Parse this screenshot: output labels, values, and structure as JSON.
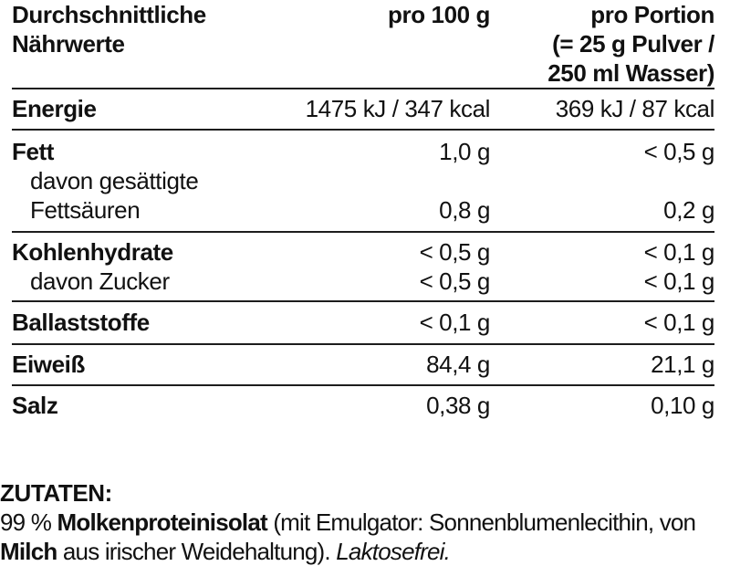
{
  "header": {
    "nutrients_title_line1": "Durchschnittliche",
    "nutrients_title_line2": "Nährwerte",
    "per_100g": "pro 100 g",
    "per_portion_line1": "pro Portion",
    "per_portion_line2": "(= 25 g Pulver /",
    "per_portion_line3": "250 ml Wasser)"
  },
  "table": {
    "rows": [
      {
        "label": "Energie",
        "v100": "1475 kJ / 347 kcal",
        "vportion": "369 kJ / 87 kcal"
      },
      {
        "label": "Fett",
        "v100": "1,0 g",
        "vportion": "< 0,5 g"
      },
      {
        "label": "davon gesättigte",
        "v100": "",
        "vportion": ""
      },
      {
        "label": "Fettsäuren",
        "v100": "0,8 g",
        "vportion": "0,2 g"
      },
      {
        "label": "Kohlenhydrate",
        "v100": "< 0,5 g",
        "vportion": "< 0,1 g"
      },
      {
        "label": "davon Zucker",
        "v100": "< 0,5 g",
        "vportion": "< 0,1 g"
      },
      {
        "label": "Ballaststoffe",
        "v100": "< 0,1 g",
        "vportion": "< 0,1 g"
      },
      {
        "label": "Eiweiß",
        "v100": "84,4 g",
        "vportion": "21,1 g"
      },
      {
        "label": "Salz",
        "v100": "0,38 g",
        "vportion": "0,10 g"
      }
    ]
  },
  "ingredients": {
    "heading": "ZUTATEN:",
    "line1": [
      {
        "t": "99 % "
      },
      {
        "t": "Molkenproteinisolat"
      },
      {
        "t": " (mit Emulgator: Sonnenblumenlecithin, von"
      }
    ],
    "line2": [
      {
        "t": "Milch"
      },
      {
        "t": " aus irischer Weidehaltung). "
      },
      {
        "t": "Laktosefrei."
      }
    ]
  },
  "colors": {
    "background": "#ffffff",
    "text": "#111111",
    "rule": "#1d1d1d"
  }
}
